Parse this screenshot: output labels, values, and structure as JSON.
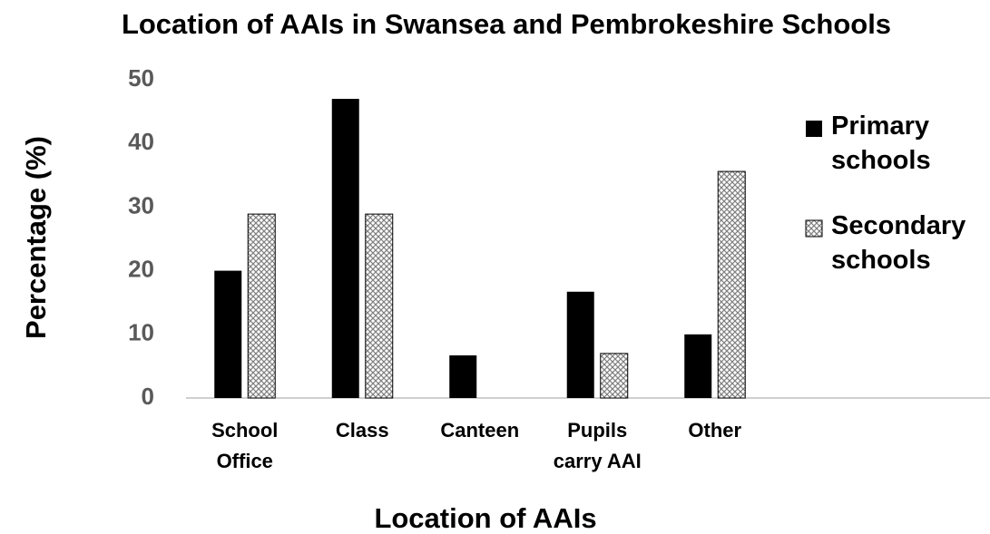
{
  "chart_data": {
    "type": "bar",
    "title": "Location of AAIs in Swansea and Pembrokeshire Schools",
    "x_label": "Location of AAIs",
    "y_label": "Percentage (%)",
    "categories": [
      "School Office",
      "Class",
      "Canteen",
      "Pupils carry AAI",
      "Other"
    ],
    "series": [
      {
        "name": "Primary schools",
        "color": "#000000",
        "values": [
          20,
          47,
          6.7,
          16.7,
          10
        ]
      },
      {
        "name": "Secondary schools",
        "color": "#7f7f7f",
        "values": [
          28.9,
          28.9,
          0,
          7,
          35.6
        ]
      }
    ],
    "ylim": [
      0,
      50
    ],
    "yticks": [
      0,
      10,
      20,
      30,
      40,
      50
    ],
    "grid": false,
    "legend": "right"
  }
}
